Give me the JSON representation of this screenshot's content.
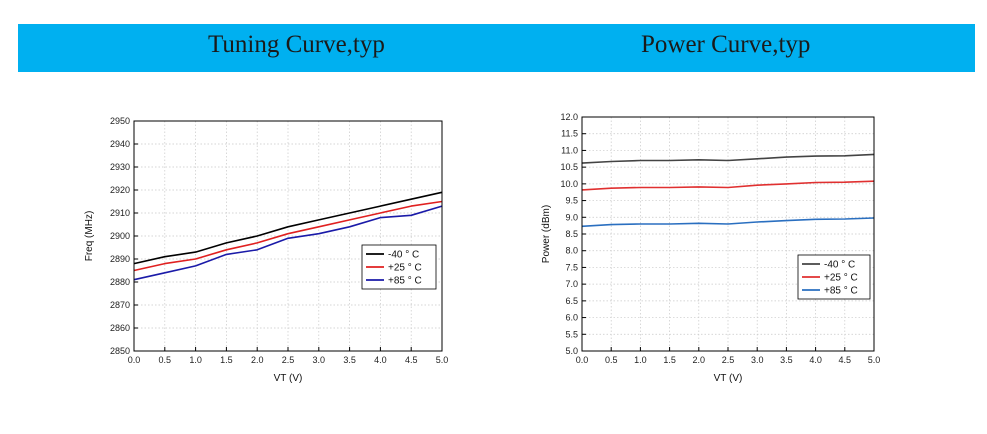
{
  "header": {
    "left_title": "Tuning Curve,typ",
    "right_title": "Power Curve,typ",
    "background_color": "#00b0f0"
  },
  "chart_data": [
    {
      "type": "line",
      "title": "",
      "xlabel": "VT (V)",
      "ylabel": "Freq (MHz)",
      "xlim": [
        0,
        5
      ],
      "ylim": [
        2850,
        2950
      ],
      "xticks": [
        0.0,
        0.5,
        1.0,
        1.5,
        2.0,
        2.5,
        3.0,
        3.5,
        4.0,
        4.5,
        5.0
      ],
      "yticks": [
        2850,
        2860,
        2870,
        2880,
        2890,
        2900,
        2910,
        2920,
        2930,
        2940,
        2950
      ],
      "x_tick_labels": [
        "0.0",
        "0.5",
        "1.0",
        "1.5",
        "2.0",
        "2.5",
        "3.0",
        "3.5",
        "4.0",
        "4.5",
        "5.0"
      ],
      "y_tick_labels": [
        "2850",
        "2860",
        "2870",
        "2880",
        "2890",
        "2900",
        "2910",
        "2920",
        "2930",
        "2940",
        "2950"
      ],
      "grid": true,
      "legend_position": "right",
      "x": [
        0.0,
        0.5,
        1.0,
        1.5,
        2.0,
        2.5,
        3.0,
        3.5,
        4.0,
        4.5,
        5.0
      ],
      "series": [
        {
          "name": "-40 ° C",
          "color": "#000000",
          "values": [
            2888,
            2891,
            2893,
            2897,
            2900,
            2904,
            2907,
            2910,
            2913,
            2916,
            2919
          ]
        },
        {
          "name": "+25 ° C",
          "color": "#e02020",
          "values": [
            2885,
            2888,
            2890,
            2894,
            2897,
            2901,
            2904,
            2907,
            2910,
            2913,
            2915
          ]
        },
        {
          "name": "+85 ° C",
          "color": "#1a1aa8",
          "values": [
            2881,
            2884,
            2887,
            2892,
            2894,
            2899,
            2901,
            2904,
            2908,
            2909,
            2913
          ]
        }
      ]
    },
    {
      "type": "line",
      "title": "",
      "xlabel": "VT (V)",
      "ylabel": "Power (dBm)",
      "xlim": [
        0,
        5
      ],
      "ylim": [
        5.0,
        12.0
      ],
      "xticks": [
        0.0,
        0.5,
        1.0,
        1.5,
        2.0,
        2.5,
        3.0,
        3.5,
        4.0,
        4.5,
        5.0
      ],
      "yticks": [
        5.0,
        5.5,
        6.0,
        6.5,
        7.0,
        7.5,
        8.0,
        8.5,
        9.0,
        9.5,
        10.0,
        10.5,
        11.0,
        11.5,
        12.0
      ],
      "x_tick_labels": [
        "0.0",
        "0.5",
        "1.0",
        "1.5",
        "2.0",
        "2.5",
        "3.0",
        "3.5",
        "4.0",
        "4.5",
        "5.0"
      ],
      "y_tick_labels": [
        "5.0",
        "5.5",
        "6.0",
        "6.5",
        "7.0",
        "7.5",
        "8.0",
        "8.5",
        "9.0",
        "9.5",
        "10.0",
        "10.5",
        "11.0",
        "11.5",
        "12.0"
      ],
      "grid": true,
      "legend_position": "right",
      "x": [
        0.0,
        0.5,
        1.0,
        1.5,
        2.0,
        2.5,
        3.0,
        3.5,
        4.0,
        4.5,
        5.0
      ],
      "series": [
        {
          "name": "-40 ° C",
          "color": "#444444",
          "values": [
            10.62,
            10.67,
            10.7,
            10.7,
            10.72,
            10.7,
            10.75,
            10.8,
            10.83,
            10.84,
            10.88
          ]
        },
        {
          "name": "+25 ° C",
          "color": "#e03030",
          "values": [
            9.82,
            9.87,
            9.89,
            9.89,
            9.91,
            9.89,
            9.96,
            10.0,
            10.04,
            10.05,
            10.08
          ]
        },
        {
          "name": "+85 ° C",
          "color": "#2a6fc0",
          "values": [
            8.73,
            8.78,
            8.8,
            8.8,
            8.82,
            8.8,
            8.86,
            8.9,
            8.94,
            8.95,
            8.98
          ]
        }
      ]
    }
  ]
}
